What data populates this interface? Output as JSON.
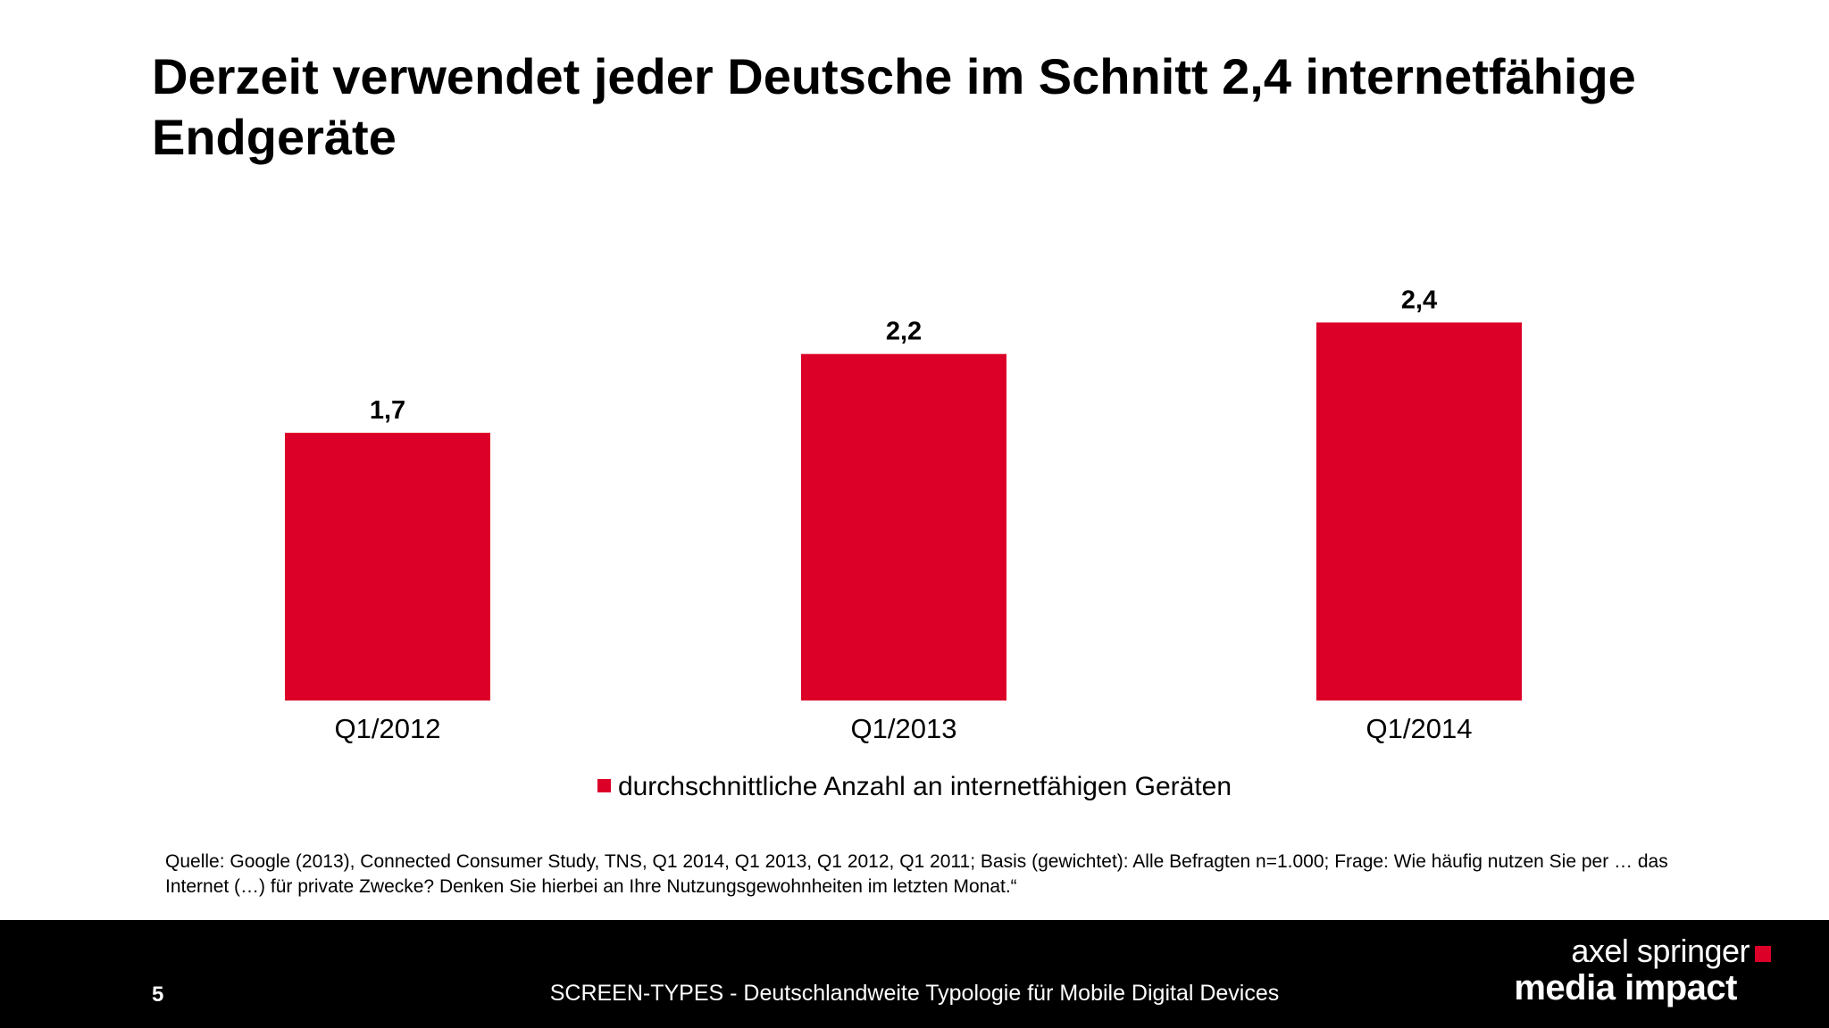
{
  "title": "Derzeit verwendet jeder Deutsche im Schnitt 2,4 internetfähige Endgeräte",
  "chart_data": {
    "type": "bar",
    "title": "",
    "xlabel": "",
    "ylabel": "",
    "categories": [
      "Q1/2012",
      "Q1/2013",
      "Q1/2014"
    ],
    "series": [
      {
        "name": "durchschnittliche Anzahl an internetfähigen Geräten",
        "values": [
          1.7,
          2.2,
          2.4
        ],
        "labels": [
          "1,7",
          "2,2",
          "2,4"
        ],
        "color": "#dc0028"
      }
    ],
    "ylim": [
      0,
      2.5
    ],
    "grid": false,
    "legend": "bottom"
  },
  "source": "Quelle: Google (2013), Connected Consumer Study, TNS, Q1 2014, Q1 2013, Q1 2012, Q1 2011; Basis (gewichtet): Alle Befragten n=1.000; Frage: Wie häufig  nutzen Sie per … das Internet (…) für private Zwecke? Denken Sie hierbei an Ihre Nutzungsgewohnheiten im letzten Monat.“",
  "footer": {
    "page_number": "5",
    "text": "SCREEN-TYPES - Deutschlandweite Typologie für Mobile Digital Devices",
    "brand_top": "axel springer",
    "brand_bottom": "media impact",
    "brand_color": "#dc0028",
    "background": "#000000"
  }
}
